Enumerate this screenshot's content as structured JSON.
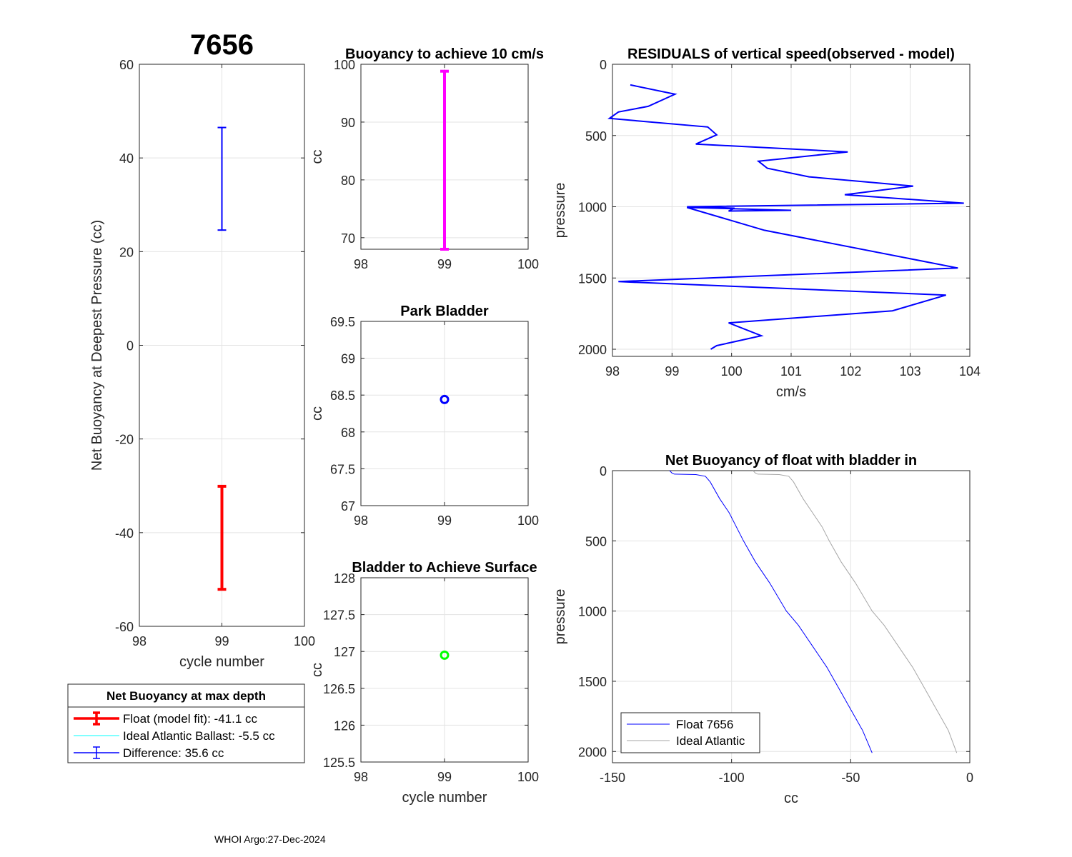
{
  "figure_title": "7656",
  "footer": "WHOI Argo:27-Dec-2024",
  "colors": {
    "float": "#0000ff",
    "ideal": "#a6a6a6",
    "fit": "#ff0000",
    "difference": "#0000ff",
    "magenta": "#ff00ff",
    "green": "#00ff00",
    "cyan": "#00ffff"
  },
  "chart_data": [
    {
      "id": "net_buoyancy",
      "type": "errorbar",
      "title": "7656",
      "xlabel": "cycle number",
      "ylabel": "Net Buoyancy at Deepest Pressure (cc)",
      "xlim": [
        98,
        100
      ],
      "ylim": [
        -60,
        60
      ],
      "xticks": [
        98,
        99,
        100
      ],
      "yticks": [
        -60,
        -40,
        -20,
        0,
        20,
        40,
        60
      ],
      "grid": true,
      "series": [
        {
          "name": "Float (model fit)",
          "color": "#ff0000",
          "x": 99,
          "low": -52.1,
          "high": -30.1
        },
        {
          "name": "Difference",
          "color": "#0000ff",
          "x": 99,
          "low": 24.6,
          "high": 46.5
        }
      ],
      "legend": {
        "title": "Net Buoyancy at max depth",
        "placement": "below-left",
        "entries": [
          {
            "label": "Float (model fit): -41.1 cc",
            "color": "#ff0000",
            "style": "errorbar-thick"
          },
          {
            "label": "Ideal Atlantic Ballast:  -5.5 cc",
            "color": "#00ffff",
            "style": "line"
          },
          {
            "label": "Difference:  35.6 cc",
            "color": "#0000ff",
            "style": "errorbar-thin"
          }
        ]
      }
    },
    {
      "id": "buoyancy_10cms",
      "type": "errorbar",
      "title": "Buoyancy to achieve 10 cm/s",
      "xlabel": "",
      "ylabel": "cc",
      "xlim": [
        98,
        100
      ],
      "ylim": [
        68,
        100
      ],
      "xticks": [
        98,
        99,
        100
      ],
      "yticks": [
        70,
        80,
        90,
        100
      ],
      "grid": true,
      "series": [
        {
          "name": "buoyancy",
          "color": "#ff00ff",
          "x": 99,
          "low": 68.0,
          "high": 98.8
        }
      ]
    },
    {
      "id": "park_bladder",
      "type": "scatter",
      "title": "Park Bladder",
      "xlabel": "",
      "ylabel": "cc",
      "xlim": [
        98,
        100
      ],
      "ylim": [
        67,
        69.5
      ],
      "xticks": [
        98,
        99,
        100
      ],
      "yticks": [
        67,
        67.5,
        68,
        68.5,
        69,
        69.5
      ],
      "grid": true,
      "series": [
        {
          "name": "park",
          "color": "#0000ff",
          "x": [
            99
          ],
          "y": [
            68.44
          ]
        }
      ]
    },
    {
      "id": "bladder_surface",
      "type": "scatter",
      "title": "Bladder to Achieve Surface",
      "xlabel": "cycle number",
      "ylabel": "cc",
      "xlim": [
        98,
        100
      ],
      "ylim": [
        125.5,
        128
      ],
      "xticks": [
        98,
        99,
        100
      ],
      "yticks": [
        125.5,
        126,
        126.5,
        127,
        127.5,
        128
      ],
      "grid": true,
      "series": [
        {
          "name": "surface",
          "color": "#00ff00",
          "x": [
            99
          ],
          "y": [
            126.95
          ]
        }
      ]
    },
    {
      "id": "residuals",
      "type": "line",
      "title": "RESIDUALS of vertical speed(observed - model)",
      "xlabel": "cm/s",
      "ylabel": "pressure",
      "xlim": [
        98,
        104
      ],
      "ylim": [
        0,
        2050
      ],
      "y_reversed": true,
      "xticks": [
        98,
        99,
        100,
        101,
        102,
        103,
        104
      ],
      "yticks": [
        0,
        500,
        1000,
        1500,
        2000
      ],
      "grid": true,
      "series": [
        {
          "name": "residual",
          "color": "#0000ff",
          "x": [
            98.3,
            99.05,
            98.6,
            98.1,
            97.95,
            99.6,
            99.75,
            99.4,
            101.95,
            100.45,
            100.6,
            101.3,
            103.05,
            101.9,
            103.9,
            99.25,
            100.05,
            99.95,
            101.0,
            99.25,
            100.55,
            103.8,
            98.1,
            103.6,
            102.7,
            99.95,
            100.5,
            99.75,
            99.65
          ],
          "y": [
            145,
            210,
            295,
            335,
            380,
            440,
            495,
            560,
            615,
            680,
            730,
            790,
            855,
            915,
            975,
            1000,
            1010,
            1030,
            1025,
            1005,
            1165,
            1430,
            1525,
            1620,
            1730,
            1815,
            1905,
            1975,
            2000
          ]
        }
      ]
    },
    {
      "id": "net_buoyancy_profile",
      "type": "line",
      "title": "Net Buoyancy of float with bladder in",
      "xlabel": "cc",
      "ylabel": "pressure",
      "xlim": [
        -150,
        0
      ],
      "ylim": [
        0,
        2080
      ],
      "y_reversed": true,
      "xticks": [
        -150,
        -100,
        -50,
        0
      ],
      "yticks": [
        0,
        500,
        1000,
        1500,
        2000
      ],
      "grid": true,
      "series": [
        {
          "name": "Float 7656",
          "color": "#0000ff",
          "x": [
            -126,
            -125,
            -124,
            -115,
            -111,
            -109,
            -105,
            -101,
            -98,
            -95,
            -90,
            -84,
            -77,
            -72,
            -66,
            -60,
            -55,
            -50,
            -45,
            -41
          ],
          "y": [
            0,
            18,
            25,
            28,
            40,
            80,
            200,
            300,
            400,
            500,
            650,
            800,
            1000,
            1100,
            1250,
            1400,
            1550,
            1700,
            1850,
            2010
          ]
        },
        {
          "name": "Ideal Atlantic",
          "color": "#a6a6a6",
          "x": [
            -91,
            -90,
            -89,
            -80,
            -76,
            -74,
            -70,
            -66,
            -62,
            -59,
            -54,
            -48,
            -41,
            -36,
            -30,
            -24,
            -19,
            -14,
            -9,
            -5.5
          ],
          "y": [
            0,
            18,
            25,
            28,
            40,
            80,
            200,
            300,
            400,
            500,
            650,
            800,
            1000,
            1100,
            1250,
            1400,
            1550,
            1700,
            1850,
            2010
          ]
        }
      ],
      "legend": {
        "placement": "bottom-left",
        "entries": [
          "Float 7656",
          "Ideal Atlantic"
        ]
      }
    }
  ]
}
